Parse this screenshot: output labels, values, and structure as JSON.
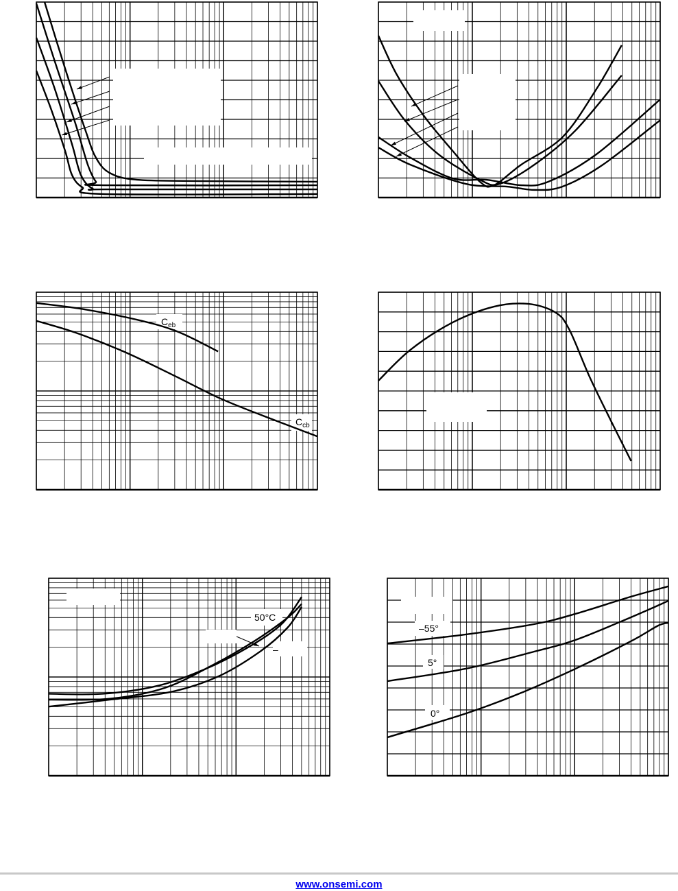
{
  "chart_data": [
    {
      "type": "line",
      "x_scale": "log",
      "x_decades": 3,
      "y_scale": "linear",
      "y_divisions": 10,
      "grid": true,
      "series": [
        {
          "points": [
            [
              0.088,
              10
            ],
            [
              0.307,
              6.6
            ],
            [
              0.527,
              3.4
            ],
            [
              0.636,
              2.04
            ],
            [
              0.783,
              1.26
            ],
            [
              1.075,
              0.91
            ],
            [
              1.807,
              0.84
            ],
            [
              3,
              0.81
            ]
          ]
        },
        {
          "points": [
            [
              0,
              9.93
            ],
            [
              0.198,
              6.95
            ],
            [
              0.417,
              3.79
            ],
            [
              0.549,
              1.68
            ],
            [
              0.636,
              0.81
            ],
            [
              0.71,
              0.63
            ],
            [
              3,
              0.63
            ]
          ]
        },
        {
          "points": [
            [
              0,
              8.18
            ],
            [
              0.198,
              5.54
            ],
            [
              0.38,
              2.74
            ],
            [
              0.475,
              1.16
            ],
            [
              0.6,
              0.46
            ],
            [
              0.78,
              0.42
            ],
            [
              3,
              0.42
            ]
          ]
        },
        {
          "points": [
            [
              0,
              6.49
            ],
            [
              0.16,
              4.49
            ],
            [
              0.307,
              2.39
            ],
            [
              0.38,
              1.16
            ],
            [
              0.49,
              0.53
            ],
            [
              0.71,
              0.18
            ],
            [
              3,
              0.18
            ]
          ]
        }
      ],
      "labels": []
    },
    {
      "type": "line",
      "x_scale": "log",
      "x_decades": 3,
      "y_scale": "linear",
      "y_divisions": 10,
      "grid": true,
      "series": [
        {
          "points": [
            [
              0,
              8.28
            ],
            [
              0.2,
              6.25
            ],
            [
              0.49,
              4.14
            ],
            [
              0.79,
              2.39
            ],
            [
              1.08,
              0.81
            ],
            [
              1.23,
              0.63
            ],
            [
              1.52,
              1.68
            ],
            [
              1.96,
              3.09
            ],
            [
              2.32,
              5.54
            ],
            [
              2.59,
              7.79
            ]
          ]
        },
        {
          "points": [
            [
              0,
              5.96
            ],
            [
              0.28,
              3.96
            ],
            [
              0.64,
              2.21
            ],
            [
              1.08,
              0.91
            ],
            [
              1.29,
              0.7
            ],
            [
              1.66,
              1.68
            ],
            [
              2.1,
              3.44
            ],
            [
              2.59,
              6.25
            ]
          ]
        },
        {
          "points": [
            [
              0,
              3.09
            ],
            [
              0.34,
              2.04
            ],
            [
              0.79,
              0.98
            ],
            [
              1.15,
              0.91
            ],
            [
              1.52,
              0.63
            ],
            [
              1.81,
              0.81
            ],
            [
              2.32,
              2.21
            ],
            [
              3,
              5.02
            ]
          ]
        },
        {
          "points": [
            [
              0,
              2.56
            ],
            [
              0.34,
              1.68
            ],
            [
              0.93,
              0.7
            ],
            [
              1.37,
              0.56
            ],
            [
              1.66,
              0.39
            ],
            [
              1.96,
              0.56
            ],
            [
              2.39,
              1.68
            ],
            [
              3,
              3.96
            ]
          ]
        }
      ],
      "labels": []
    },
    {
      "type": "line",
      "x_scale": "log",
      "x_decades": 3,
      "y_scale": "log",
      "y_decades": 2,
      "grid": true,
      "series": [
        {
          "name": "Ceb",
          "points": [
            [
              0,
              1.89
            ],
            [
              0.49,
              1.83
            ],
            [
              1.08,
              1.72
            ],
            [
              1.51,
              1.6
            ],
            [
              1.94,
              1.4
            ]
          ]
        },
        {
          "name": "Ccb",
          "points": [
            [
              0,
              1.71
            ],
            [
              0.42,
              1.59
            ],
            [
              0.93,
              1.4
            ],
            [
              1.44,
              1.17
            ],
            [
              1.95,
              0.93
            ],
            [
              2.39,
              0.76
            ],
            [
              3,
              0.54
            ]
          ]
        }
      ],
      "labels": [
        {
          "main": "C",
          "sub": "eb"
        },
        {
          "main": "C",
          "sub": "cb"
        }
      ]
    },
    {
      "type": "line",
      "x_scale": "log",
      "x_decades": 3,
      "y_scale": "linear",
      "y_divisions": 10,
      "grid": true,
      "series": [
        {
          "points": [
            [
              0,
              5.52
            ],
            [
              0.34,
              7.08
            ],
            [
              0.79,
              8.47
            ],
            [
              1.23,
              9.27
            ],
            [
              1.59,
              9.41
            ],
            [
              1.88,
              8.99
            ],
            [
              2.03,
              8.13
            ],
            [
              2.25,
              5.7
            ],
            [
              2.5,
              3.26
            ],
            [
              2.69,
              1.46
            ]
          ]
        }
      ],
      "labels": []
    },
    {
      "type": "line",
      "x_scale": "log",
      "x_decades": 3,
      "y_scale": "log",
      "y_decades": 2,
      "grid": true,
      "series": [
        {
          "name": "50°C",
          "points": [
            [
              0,
              0.83
            ],
            [
              0.58,
              0.83
            ],
            [
              1.16,
              0.91
            ],
            [
              1.67,
              1.08
            ],
            [
              2.11,
              1.29
            ],
            [
              2.48,
              1.53
            ],
            [
              2.7,
              1.81
            ]
          ]
        },
        {
          "points": [
            [
              0,
              0.77
            ],
            [
              0.65,
              0.78
            ],
            [
              1.24,
              0.89
            ],
            [
              1.75,
              1.12
            ],
            [
              2.19,
              1.36
            ],
            [
              2.55,
              1.6
            ],
            [
              2.7,
              1.74
            ]
          ]
        },
        {
          "points": [
            [
              0,
              0.7
            ],
            [
              0.65,
              0.77
            ],
            [
              1.31,
              0.85
            ],
            [
              1.82,
              1.01
            ],
            [
              2.26,
              1.26
            ],
            [
              2.55,
              1.5
            ],
            [
              2.7,
              1.71
            ]
          ]
        }
      ],
      "labels": [
        {
          "main": "50°C"
        },
        {
          "main": "–"
        }
      ]
    },
    {
      "type": "line",
      "x_scale": "log",
      "x_decades": 3,
      "y_scale": "linear",
      "y_divisions": 9,
      "grid": true,
      "series": [
        {
          "name": "–55°",
          "points": [
            [
              0,
              6.03
            ],
            [
              0.84,
              6.44
            ],
            [
              1.57,
              6.91
            ],
            [
              2.01,
              7.38
            ],
            [
              2.6,
              8.16
            ],
            [
              3,
              8.63
            ]
          ]
        },
        {
          "name": "5°",
          "points": [
            [
              0,
              4.31
            ],
            [
              0.84,
              4.88
            ],
            [
              1.57,
              5.66
            ],
            [
              2.01,
              6.19
            ],
            [
              2.6,
              7.22
            ],
            [
              3,
              7.97
            ]
          ]
        },
        {
          "name": "0°",
          "points": [
            [
              0,
              1.75
            ],
            [
              0.84,
              2.84
            ],
            [
              1.43,
              3.78
            ],
            [
              2.01,
              4.88
            ],
            [
              2.6,
              6.13
            ],
            [
              2.89,
              6.84
            ],
            [
              3,
              6.97
            ]
          ]
        }
      ],
      "labels": [
        {
          "main": "–55°"
        },
        {
          "main": "5°"
        },
        {
          "main": "0°"
        }
      ]
    }
  ],
  "footer": {
    "link": "www.onsemi.com",
    "rule_color": "#c8c8c8",
    "link_color": "#0000ee"
  }
}
